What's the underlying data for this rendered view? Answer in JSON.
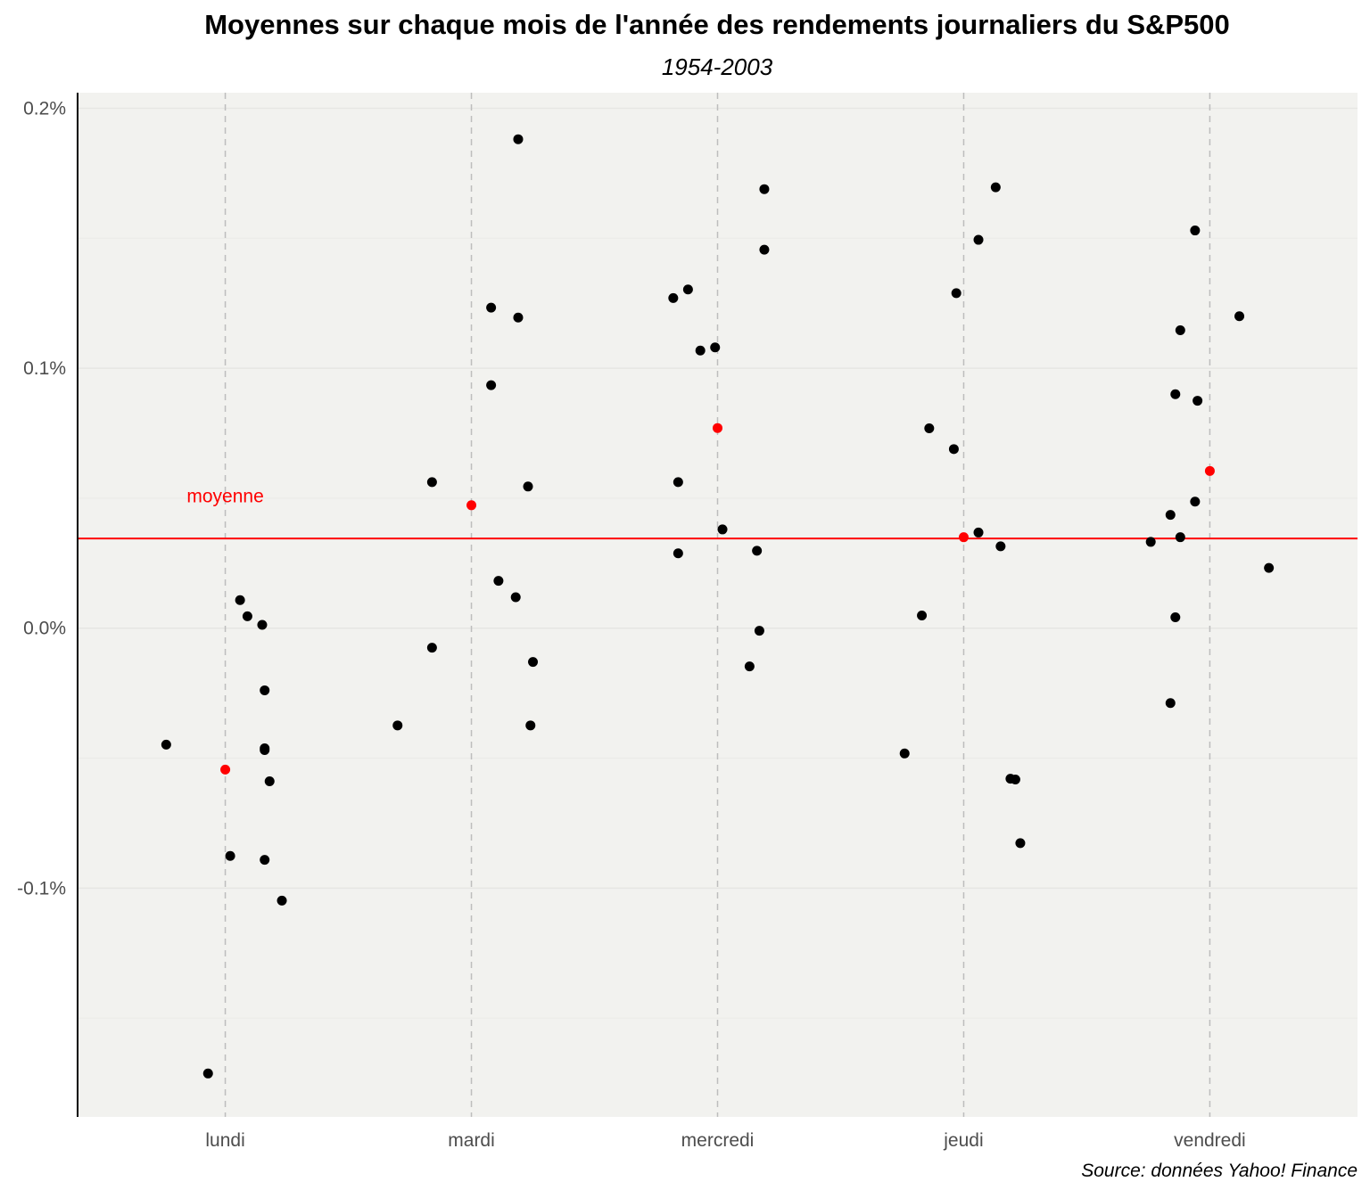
{
  "chart_data": {
    "type": "scatter",
    "title": "Moyennes sur chaque mois de l'année des rendements journaliers du S&P500",
    "subtitle": "1954-2003",
    "caption": "Source: données Yahoo! Finance",
    "categories": [
      "lundi",
      "mardi",
      "mercredi",
      "jeudi",
      "vendredi"
    ],
    "y_tick_labels": [
      "0.2%",
      "0.1%",
      "0.0%",
      "-0.1%"
    ],
    "y_ticks": [
      0.2,
      0.1,
      0.0,
      -0.1
    ],
    "ylim": [
      -0.188,
      0.206
    ],
    "xlim": [
      0.4,
      5.6
    ],
    "grid": true,
    "overall_mean": 0.0345,
    "mean_label": "moyenne",
    "colors": {
      "points": "#000000",
      "means": "#ff0000",
      "panel": "#f2f2ef"
    },
    "series": [
      {
        "points": [
          {
            "x": 0.76,
            "y": -0.0448
          },
          {
            "x": 0.93,
            "y": -0.1713
          },
          {
            "x": 1.06,
            "y": 0.0108
          },
          {
            "x": 1.09,
            "y": 0.0046
          },
          {
            "x": 1.15,
            "y": 0.0013
          },
          {
            "x": 1.16,
            "y": -0.0239
          },
          {
            "x": 1.16,
            "y": -0.0469
          },
          {
            "x": 1.16,
            "y": -0.0462
          },
          {
            "x": 1.18,
            "y": -0.0589
          },
          {
            "x": 1.02,
            "y": -0.0876
          },
          {
            "x": 1.16,
            "y": -0.0891
          },
          {
            "x": 1.23,
            "y": -0.1048
          },
          {
            "x": 1.7,
            "y": -0.0374
          },
          {
            "x": 1.84,
            "y": 0.0562
          },
          {
            "x": 1.84,
            "y": -0.0075
          },
          {
            "x": 2.08,
            "y": 0.1233
          },
          {
            "x": 2.08,
            "y": 0.0935
          },
          {
            "x": 2.11,
            "y": 0.0182
          },
          {
            "x": 2.19,
            "y": 0.1881
          },
          {
            "x": 2.19,
            "y": 0.1195
          },
          {
            "x": 2.18,
            "y": 0.0119
          },
          {
            "x": 2.23,
            "y": 0.0545
          },
          {
            "x": 2.24,
            "y": -0.0374
          },
          {
            "x": 2.25,
            "y": -0.013
          },
          {
            "x": 2.82,
            "y": 0.127
          },
          {
            "x": 2.84,
            "y": 0.0562
          },
          {
            "x": 2.84,
            "y": 0.0288
          },
          {
            "x": 2.88,
            "y": 0.1303
          },
          {
            "x": 2.93,
            "y": 0.1068
          },
          {
            "x": 2.99,
            "y": 0.108
          },
          {
            "x": 3.02,
            "y": 0.038
          },
          {
            "x": 3.13,
            "y": -0.0147
          },
          {
            "x": 3.16,
            "y": 0.0298
          },
          {
            "x": 3.17,
            "y": -0.001
          },
          {
            "x": 3.19,
            "y": 0.1689
          },
          {
            "x": 3.19,
            "y": 0.1456
          },
          {
            "x": 3.76,
            "y": -0.0482
          },
          {
            "x": 3.83,
            "y": 0.0049
          },
          {
            "x": 3.86,
            "y": 0.0769
          },
          {
            "x": 3.96,
            "y": 0.0689
          },
          {
            "x": 3.97,
            "y": 0.1289
          },
          {
            "x": 4.06,
            "y": 0.1494
          },
          {
            "x": 4.06,
            "y": 0.0368
          },
          {
            "x": 4.13,
            "y": 0.1696
          },
          {
            "x": 4.15,
            "y": 0.0315
          },
          {
            "x": 4.19,
            "y": -0.0579
          },
          {
            "x": 4.21,
            "y": -0.0582
          },
          {
            "x": 4.23,
            "y": -0.0827
          },
          {
            "x": 4.76,
            "y": 0.0332
          },
          {
            "x": 4.84,
            "y": 0.0436
          },
          {
            "x": 4.84,
            "y": -0.0288
          },
          {
            "x": 4.86,
            "y": 0.0042
          },
          {
            "x": 4.86,
            "y": 0.09
          },
          {
            "x": 4.88,
            "y": 0.1146
          },
          {
            "x": 4.88,
            "y": 0.035
          },
          {
            "x": 4.94,
            "y": 0.153
          },
          {
            "x": 4.94,
            "y": 0.0487
          },
          {
            "x": 4.95,
            "y": 0.0875
          },
          {
            "x": 5.12,
            "y": 0.12
          },
          {
            "x": 5.24,
            "y": 0.0232
          }
        ]
      },
      {
        "points": [
          {
            "x": 1,
            "y": -0.0544
          },
          {
            "x": 2,
            "y": 0.0473
          },
          {
            "x": 3,
            "y": 0.077
          },
          {
            "x": 4,
            "y": 0.035
          },
          {
            "x": 5,
            "y": 0.0605
          }
        ]
      }
    ]
  }
}
